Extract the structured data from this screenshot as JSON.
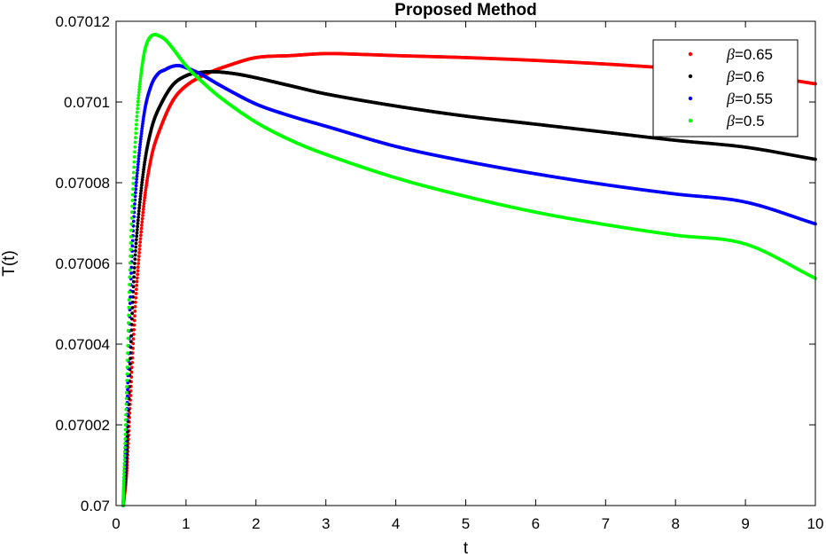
{
  "chart_data": {
    "type": "scatter",
    "title": "Proposed Method",
    "xlabel": "t",
    "ylabel": "T(t)",
    "xlim": [
      0,
      10
    ],
    "ylim": [
      0.07,
      0.07012
    ],
    "xticks": [
      "0",
      "1",
      "2",
      "3",
      "4",
      "5",
      "6",
      "7",
      "8",
      "9",
      "10"
    ],
    "yticks": [
      "0.07",
      "0.07002",
      "0.07004",
      "0.07006",
      "0.07008",
      "0.0701",
      "0.07012"
    ],
    "grid": false,
    "box": true,
    "legend_position": "top-right",
    "legend_prefix": "β",
    "marker": "dot",
    "series": [
      {
        "name": "=0.65",
        "color": "#ff0000",
        "x": [
          0.1,
          0.15,
          0.2,
          0.25,
          0.3,
          0.4,
          0.5,
          0.6,
          0.8,
          1.0,
          1.3,
          1.6,
          2.0,
          2.5,
          3.0,
          3.5,
          4.0,
          5.0,
          6.0,
          7.0,
          8.0,
          9.0,
          10.0
        ],
        "values": [
          0.07,
          0.070008,
          0.070025,
          0.070042,
          0.070056,
          0.070075,
          0.070086,
          0.070092,
          0.0701,
          0.070104,
          0.070107,
          0.070109,
          0.070111,
          0.0701115,
          0.070112,
          0.0701118,
          0.0701115,
          0.070111,
          0.0701103,
          0.0701094,
          0.0701083,
          0.0701071,
          0.0701045
        ]
      },
      {
        "name": "=0.6",
        "color": "#000000",
        "x": [
          0.1,
          0.15,
          0.2,
          0.25,
          0.3,
          0.4,
          0.5,
          0.6,
          0.8,
          1.0,
          1.2,
          1.4,
          1.7,
          2.0,
          2.5,
          3.0,
          4.0,
          5.0,
          6.0,
          7.0,
          8.0,
          9.0,
          10.0
        ],
        "values": [
          0.07,
          0.070012,
          0.070035,
          0.070055,
          0.070068,
          0.070084,
          0.070093,
          0.070098,
          0.070104,
          0.0701065,
          0.0701073,
          0.0701075,
          0.070107,
          0.070106,
          0.070104,
          0.070102,
          0.070099,
          0.0700965,
          0.0700945,
          0.0700925,
          0.0700905,
          0.0700888,
          0.0700858
        ]
      },
      {
        "name": "=0.55",
        "color": "#0000ff",
        "x": [
          0.1,
          0.15,
          0.2,
          0.25,
          0.3,
          0.4,
          0.5,
          0.6,
          0.7,
          0.8,
          0.9,
          1.0,
          1.2,
          1.5,
          2.0,
          2.5,
          3.0,
          4.0,
          5.0,
          6.0,
          7.0,
          8.0,
          9.0,
          10.0
        ],
        "values": [
          0.07,
          0.07002,
          0.07005,
          0.07007,
          0.070082,
          0.070097,
          0.070104,
          0.070107,
          0.070108,
          0.0701088,
          0.070109,
          0.0701085,
          0.070107,
          0.070104,
          0.0700995,
          0.0700965,
          0.070094,
          0.070089,
          0.0700853,
          0.0700822,
          0.0700795,
          0.0700772,
          0.0700752,
          0.0700698
        ]
      },
      {
        "name": "=0.5",
        "color": "#00ff00",
        "x": [
          0.1,
          0.15,
          0.2,
          0.25,
          0.3,
          0.35,
          0.4,
          0.45,
          0.5,
          0.55,
          0.6,
          0.7,
          0.8,
          1.0,
          1.2,
          1.5,
          2.0,
          2.5,
          3.0,
          4.0,
          5.0,
          6.0,
          7.0,
          8.0,
          9.0,
          10.0
        ],
        "values": [
          0.07,
          0.070028,
          0.07006,
          0.070082,
          0.070097,
          0.070106,
          0.070112,
          0.070115,
          0.0701163,
          0.0701167,
          0.0701165,
          0.0701155,
          0.0701135,
          0.070109,
          0.0701055,
          0.070101,
          0.070095,
          0.0700905,
          0.070087,
          0.0700812,
          0.0700766,
          0.0700727,
          0.0700696,
          0.070067,
          0.0700648,
          0.0700563
        ]
      }
    ]
  }
}
